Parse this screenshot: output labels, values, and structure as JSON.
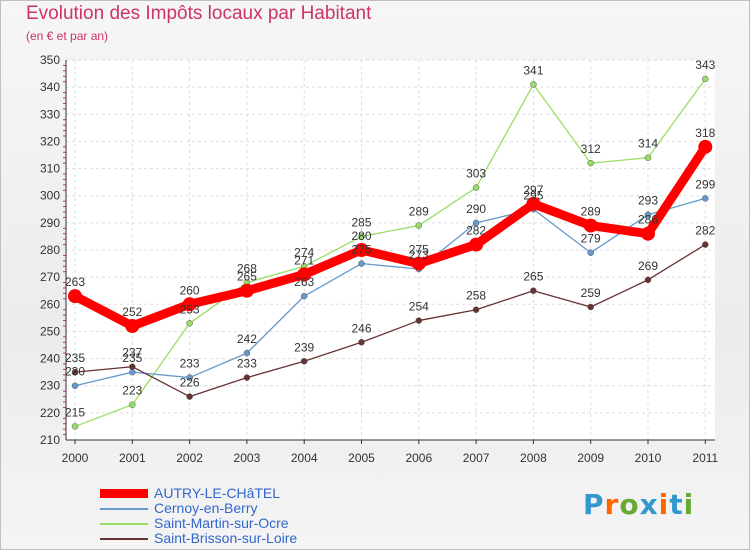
{
  "chart_data": {
    "type": "line",
    "title": "Evolution des Impôts locaux par Habitant",
    "subtitle": "(en € et par an)",
    "xlabel": "",
    "ylabel": "",
    "categories": [
      "2000",
      "2001",
      "2002",
      "2003",
      "2004",
      "2005",
      "2006",
      "2007",
      "2008",
      "2009",
      "2010",
      "2011"
    ],
    "ylim": [
      210,
      350
    ],
    "yticks": [
      210,
      220,
      230,
      240,
      250,
      260,
      270,
      280,
      290,
      300,
      310,
      320,
      330,
      340,
      350
    ],
    "grid": true,
    "legend_position": "bottom-left",
    "series": [
      {
        "name": "AUTRY-LE-CHâTEL",
        "color": "#ff0000",
        "values": [
          263,
          252,
          260,
          265,
          271,
          280,
          275,
          282,
          297,
          289,
          286,
          318
        ],
        "labels": [
          "263",
          "252",
          "260",
          "265",
          "271",
          "280",
          "275",
          "282",
          "297",
          "289",
          "286",
          "318"
        ]
      },
      {
        "name": "Cernoy-en-Berry",
        "color": "#6699cc",
        "values": [
          230,
          235,
          233,
          242,
          263,
          275,
          273,
          290,
          295,
          279,
          293,
          299
        ],
        "labels": [
          "230",
          "235",
          "233",
          "242",
          "263",
          "275",
          "273",
          "290",
          "295",
          "279",
          "293",
          "299"
        ]
      },
      {
        "name": "Saint-Martin-sur-Ocre",
        "color": "#99dd66",
        "values": [
          215,
          223,
          253,
          268,
          274,
          285,
          289,
          303,
          341,
          312,
          314,
          343
        ],
        "labels": [
          "215",
          "223",
          "253",
          "268",
          "274",
          "285",
          "289",
          "303",
          "341",
          "312",
          "314",
          "343"
        ]
      },
      {
        "name": "Saint-Brisson-sur-Loire",
        "color": "#663333",
        "values": [
          235,
          237,
          226,
          233,
          239,
          246,
          254,
          258,
          265,
          259,
          269,
          282
        ],
        "labels": [
          "235",
          "237",
          "226",
          "233",
          "239",
          "246",
          "254",
          "258",
          "265",
          "259",
          "269",
          "282"
        ]
      }
    ]
  },
  "brand": {
    "letters": [
      "P",
      "r",
      "o",
      "x",
      "i",
      "t",
      "i"
    ],
    "colors": [
      "#3399cc",
      "#ff6600",
      "#66aa33",
      "#3399cc",
      "#ff6600",
      "#3399cc",
      "#66aa33"
    ]
  }
}
